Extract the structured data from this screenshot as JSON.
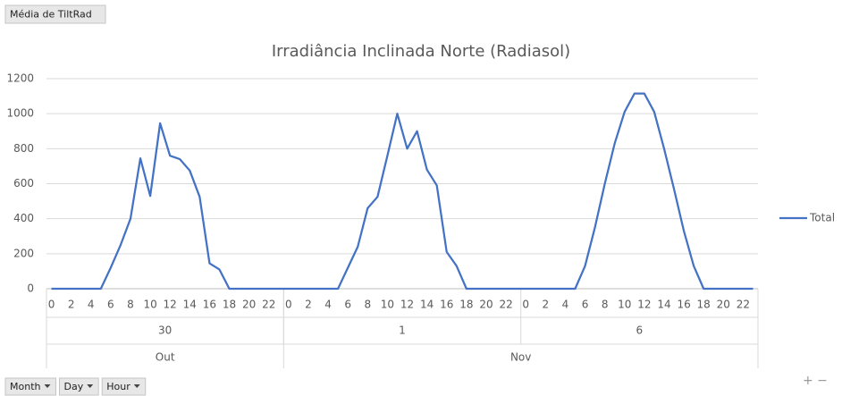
{
  "value_field": "Média de TiltRad",
  "axis_fields": [
    "Month",
    "Day",
    "Hour"
  ],
  "chart_data": {
    "type": "line",
    "title": "Irradiância Inclinada Norte (Radiasol)",
    "categories": [
      0,
      null,
      2,
      null,
      4,
      null,
      6,
      null,
      8,
      null,
      10,
      null,
      12,
      null,
      14,
      null,
      16,
      null,
      18,
      null,
      20,
      null,
      22,
      null,
      0,
      null,
      2,
      null,
      4,
      null,
      6,
      null,
      8,
      null,
      10,
      null,
      12,
      null,
      14,
      null,
      16,
      null,
      18,
      null,
      20,
      null,
      22,
      null,
      0,
      null,
      2,
      null,
      4,
      null,
      6,
      null,
      8,
      null,
      10,
      null,
      12,
      null,
      14,
      null,
      16,
      null,
      18,
      null,
      20,
      null,
      22,
      null
    ],
    "months": [
      {
        "label": "Out",
        "days": [
          30
        ]
      },
      {
        "label": "Nov",
        "days": [
          1,
          6
        ]
      }
    ],
    "series": [
      {
        "name": "Total",
        "color": "#4472c4",
        "values": [
          0,
          0,
          0,
          0,
          0,
          0,
          120,
          250,
          400,
          745,
          530,
          945,
          760,
          740,
          675,
          525,
          145,
          110,
          0,
          0,
          0,
          0,
          0,
          0,
          0,
          0,
          0,
          0,
          0,
          0,
          120,
          240,
          460,
          525,
          760,
          1000,
          800,
          900,
          680,
          590,
          210,
          130,
          0,
          0,
          0,
          0,
          0,
          0,
          0,
          0,
          0,
          0,
          0,
          0,
          130,
          350,
          600,
          830,
          1010,
          1115,
          1115,
          1010,
          800,
          570,
          330,
          130,
          0,
          0,
          0,
          0,
          0,
          0
        ]
      }
    ],
    "ylim": [
      0,
      1200
    ],
    "yticks": [
      0,
      200,
      400,
      600,
      800,
      1000,
      1200
    ],
    "grid": true,
    "legend": "right"
  }
}
